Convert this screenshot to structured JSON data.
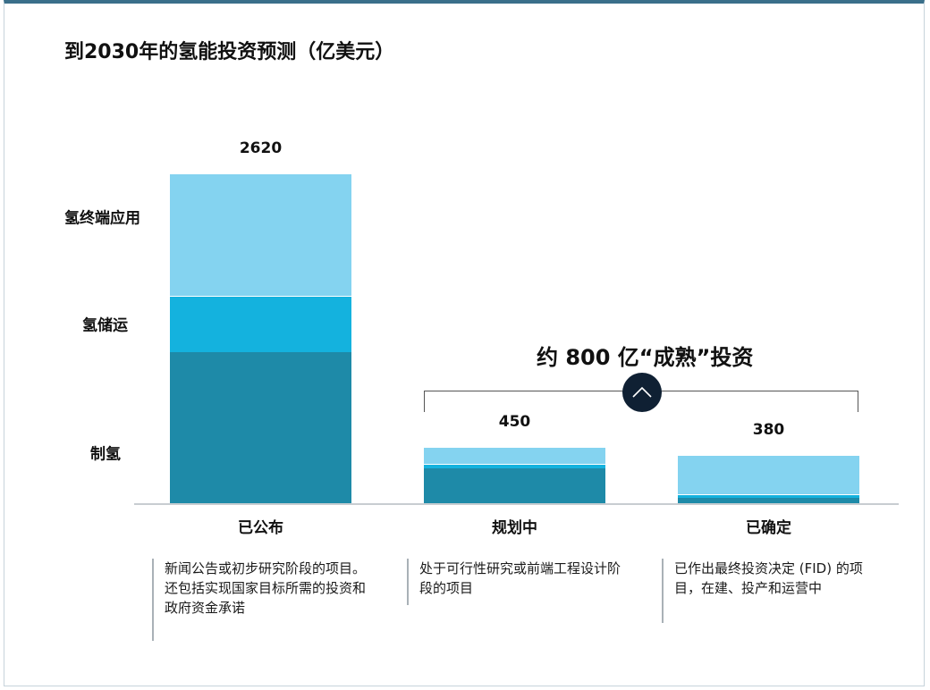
{
  "title": "到2030年的氢能投资预测（亿美元）",
  "segment_labels": {
    "end_use": "氢终端应用",
    "storage": "氢储运",
    "production": "制氢"
  },
  "annotation": "约 800 亿“成熟”投资",
  "annotation_icon": "chevron-up-icon",
  "colors": {
    "production": "#1e8aa8",
    "storage": "#14b2de",
    "end_use": "#84d3f0",
    "annotation_circle": "#0f2033"
  },
  "notes": [
    "新闻公告或初步研究阶段的项目。还包括实现国家目标所需的投资和政府资金承诺",
    "处于可行性研究或前端工程设计阶段的项目",
    "已作出最终投资决定 (FID) 的项目，在建、投产和运营中"
  ],
  "chart_data": {
    "type": "bar",
    "stacked": true,
    "title": "到2030年的氢能投资预测（亿美元）",
    "categories": [
      "已公布",
      "规划中",
      "已确定"
    ],
    "totals": [
      2620,
      450,
      380
    ],
    "series": [
      {
        "name": "制氢",
        "values": [
          1200,
          280,
          45
        ]
      },
      {
        "name": "氢储运",
        "values": [
          450,
          30,
          25
        ]
      },
      {
        "name": "氢终端应用",
        "values": [
          970,
          140,
          310
        ]
      }
    ],
    "ylim": [
      0,
      2620
    ],
    "grid": false,
    "legend": "left, inline labels"
  }
}
